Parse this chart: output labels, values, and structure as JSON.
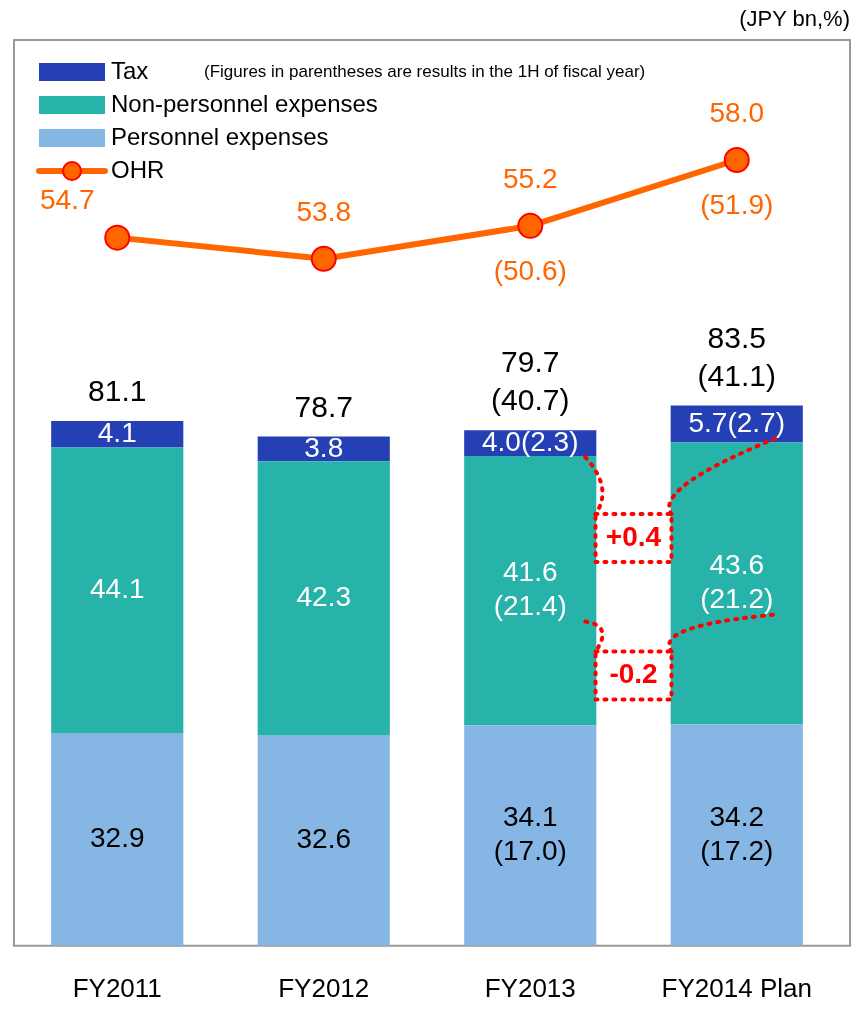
{
  "chart_data": {
    "type": "bar",
    "stacked": true,
    "categories": [
      "FY2011",
      "FY2012",
      "FY2013",
      "FY2014 Plan"
    ],
    "series": [
      {
        "name": "Personnel expenses",
        "color": "#86b6e3",
        "values": [
          32.9,
          32.6,
          34.1,
          34.2
        ],
        "value_labels": [
          "32.9",
          "32.6",
          "34.1 (17.0)",
          "34.2 (17.2)"
        ]
      },
      {
        "name": "Non-personnel expenses",
        "color": "#27b3aa",
        "values": [
          44.1,
          42.3,
          41.6,
          43.6
        ],
        "value_labels": [
          "44.1",
          "42.3",
          "41.6 (21.4)",
          "43.6 (21.2)"
        ]
      },
      {
        "name": "Tax",
        "color": "#2540b5",
        "values": [
          4.1,
          3.8,
          4.0,
          5.7
        ],
        "value_labels": [
          "4.1",
          "3.8",
          "4.0(2.3)",
          "5.7(2.7)"
        ]
      },
      {
        "name": "OHR",
        "type": "line",
        "axis": "y2",
        "color": "#ff6600",
        "values": [
          54.7,
          53.8,
          55.2,
          58.0
        ],
        "value_labels": [
          "54.7",
          "53.8",
          "55.2 (50.6)",
          "58.0 (51.9)"
        ]
      }
    ],
    "totals": [
      "81.1",
      "78.7",
      "79.7 (40.7)",
      "83.5 (41.1)"
    ],
    "ylim": [
      0,
      140
    ],
    "y2lim": [
      24.6,
      63.1
    ],
    "tick_labels": "x",
    "grid": false,
    "legend": "top left",
    "marker": "circle",
    "line_style": "solid",
    "annotations": [
      "(JPY bn,%)",
      "(Figures in parentheses are results in the 1H of fiscal year)",
      "+0.4",
      "-0.2"
    ]
  }
}
